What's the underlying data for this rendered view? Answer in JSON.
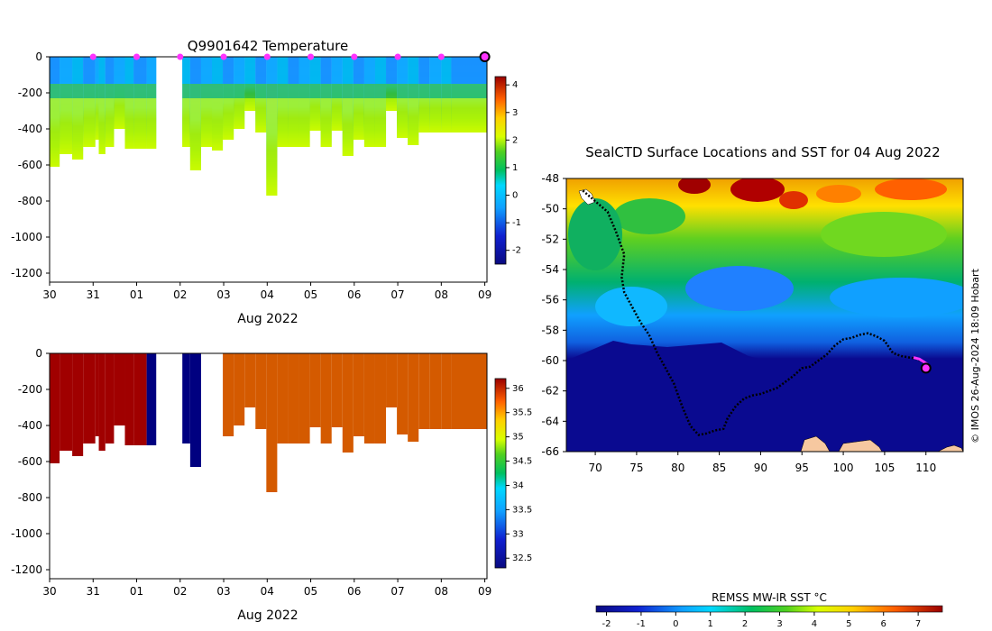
{
  "chart_data": [
    {
      "id": "temperature-profile",
      "type": "heatmap",
      "title": "Q9901642  Temperature",
      "xlabel": "Aug 2022",
      "ylabel": "",
      "x_ticks": [
        "30",
        "31",
        "01",
        "02",
        "03",
        "04",
        "05",
        "06",
        "07",
        "08",
        "09"
      ],
      "x_range_days": [
        0,
        10.05
      ],
      "ylim": [
        -1250,
        0
      ],
      "y_ticks": [
        0,
        -200,
        -400,
        -600,
        -800,
        -1000,
        -1200
      ],
      "y_tick_labels": [
        "0",
        "-200",
        "-400",
        "-600",
        "-800",
        "-1000",
        "-1200"
      ],
      "colorbar": {
        "range": [
          -2.5,
          4.3
        ],
        "ticks": [
          4,
          3,
          2,
          1,
          0,
          -1,
          -2
        ],
        "tick_labels": [
          "4",
          "3",
          "2",
          "1",
          "0",
          "-1",
          "-2"
        ]
      },
      "surface_marker_days": [
        1,
        2,
        3,
        4,
        5,
        6,
        7,
        8,
        9,
        10
      ],
      "current_position_day": 10,
      "profiles_start_day": [
        0,
        0.23,
        0.52,
        0.77,
        1.05,
        1.13,
        1.28,
        1.48,
        1.73,
        1.93,
        2.23,
        3.05,
        3.23,
        3.48,
        3.73,
        3.98,
        4.23,
        4.48,
        4.73,
        4.98,
        5.23,
        5.48,
        5.73,
        5.98,
        6.23,
        6.48,
        6.73,
        6.98,
        7.23,
        7.48,
        7.73,
        7.98,
        8.23,
        8.48,
        8.73,
        9.0,
        9.23
      ],
      "profiles_end_day": [
        0.23,
        0.52,
        0.77,
        1.05,
        1.13,
        1.28,
        1.48,
        1.73,
        1.93,
        2.23,
        2.45,
        3.23,
        3.48,
        3.73,
        3.98,
        4.23,
        4.48,
        4.73,
        4.98,
        5.23,
        5.48,
        5.73,
        5.98,
        6.23,
        6.48,
        6.73,
        6.98,
        7.23,
        7.48,
        7.73,
        7.98,
        8.23,
        8.48,
        8.73,
        9.0,
        9.23,
        10.05
      ],
      "profiles_max_depth_m": [
        -610,
        -540,
        -570,
        -500,
        -460,
        -540,
        -500,
        -400,
        -510,
        -510,
        -510,
        -500,
        -630,
        -500,
        -520,
        -460,
        -400,
        -300,
        -420,
        -770,
        -500,
        -500,
        -500,
        -410,
        -500,
        -410,
        -550,
        -460,
        -500,
        -500,
        -300,
        -450,
        -490,
        -420,
        -420,
        -420,
        -420
      ]
    },
    {
      "id": "salinity-profile",
      "type": "heatmap",
      "title": "",
      "xlabel": "Aug 2022",
      "ylabel": "",
      "x_ticks": [
        "30",
        "31",
        "01",
        "02",
        "03",
        "04",
        "05",
        "06",
        "07",
        "08",
        "09"
      ],
      "ylim": [
        -1250,
        0
      ],
      "y_ticks": [
        0,
        -200,
        -400,
        -600,
        -800,
        -1000,
        -1200
      ],
      "y_tick_labels": [
        "0",
        "-200",
        "-400",
        "-600",
        "-800",
        "-1000",
        "-1200"
      ],
      "colorbar": {
        "range": [
          32.3,
          36.2
        ],
        "ticks": [
          36,
          35.5,
          35,
          34.5,
          34,
          33.5,
          33,
          32.5
        ],
        "tick_labels": [
          "36",
          "35.5",
          "35",
          "34.5",
          "34",
          "33.5",
          "33",
          "32.5"
        ]
      },
      "segments": [
        {
          "start_day": 0,
          "end_day": 2.2,
          "value": 36.0
        },
        {
          "start_day": 2.2,
          "end_day": 3.25,
          "value": 32.6
        },
        {
          "start_day": 3.85,
          "end_day": 10.05,
          "value": 35.3
        }
      ]
    },
    {
      "id": "sst-map",
      "type": "map",
      "title": "SealCTD Surface Locations and SST for 04 Aug 2022",
      "x_ticks": [
        70,
        75,
        80,
        85,
        90,
        95,
        100,
        105,
        110
      ],
      "x_tick_labels": [
        "70",
        "75",
        "80",
        "85",
        "90",
        "95",
        "100",
        "105",
        "110"
      ],
      "xlim": [
        66.5,
        114.5
      ],
      "y_ticks": [
        -48,
        -50,
        -52,
        -54,
        -56,
        -58,
        -60,
        -62,
        -64,
        -66
      ],
      "y_tick_labels": [
        "-48",
        "-50",
        "-52",
        "-54",
        "-56",
        "-58",
        "-60",
        "-62",
        "-64",
        "-66"
      ],
      "ylim": [
        -66,
        -48
      ],
      "track_lon": [
        68.5,
        70,
        71.5,
        72.5,
        73.5,
        73.2,
        73.5,
        74.5,
        75.5,
        76.5,
        77.5,
        78.5,
        79.5,
        80.5,
        81.5,
        82.5,
        83.5,
        84.5,
        85.5,
        86,
        87,
        88,
        89,
        90,
        91,
        92,
        93,
        94,
        95,
        96,
        97,
        98,
        99,
        100,
        101,
        102,
        103,
        104,
        105,
        106,
        107,
        108,
        109,
        110
      ],
      "track_lat": [
        -48.8,
        -49.5,
        -50.2,
        -51.5,
        -53,
        -54.5,
        -55.5,
        -56.5,
        -57.5,
        -58.3,
        -59.5,
        -60.5,
        -61.5,
        -63,
        -64.3,
        -64.9,
        -64.8,
        -64.6,
        -64.5,
        -63.8,
        -63,
        -62.5,
        -62.3,
        -62.2,
        -62,
        -61.8,
        -61.4,
        -61,
        -60.5,
        -60.4,
        -60,
        -59.6,
        -59,
        -58.6,
        -58.5,
        -58.3,
        -58.2,
        -58.4,
        -58.7,
        -59.5,
        -59.7,
        -59.8,
        -59.9,
        -60.2
      ],
      "recent_track_lon": [
        108.5,
        109.2,
        109.8,
        110.3
      ],
      "recent_track_lat": [
        -59.8,
        -59.9,
        -60.1,
        -60.3
      ],
      "current_lon": 110.0,
      "current_lat": -60.5,
      "colorbar": {
        "label": "REMSS MW-IR SST °C",
        "range": [
          -2.3,
          7.7
        ],
        "ticks": [
          -2,
          -1,
          0,
          1,
          2,
          3,
          4,
          5,
          6,
          7
        ],
        "tick_labels": [
          "-2",
          "-1",
          "0",
          "1",
          "2",
          "3",
          "4",
          "5",
          "6",
          "7"
        ]
      }
    }
  ],
  "credit": "© IMOS 26-Aug-2024 18:09 Hobart",
  "colors": {
    "surface_marker": "#ff33ff",
    "current_marker_outline": "#000000",
    "track": "#000000",
    "land": "#f6c8a0"
  }
}
